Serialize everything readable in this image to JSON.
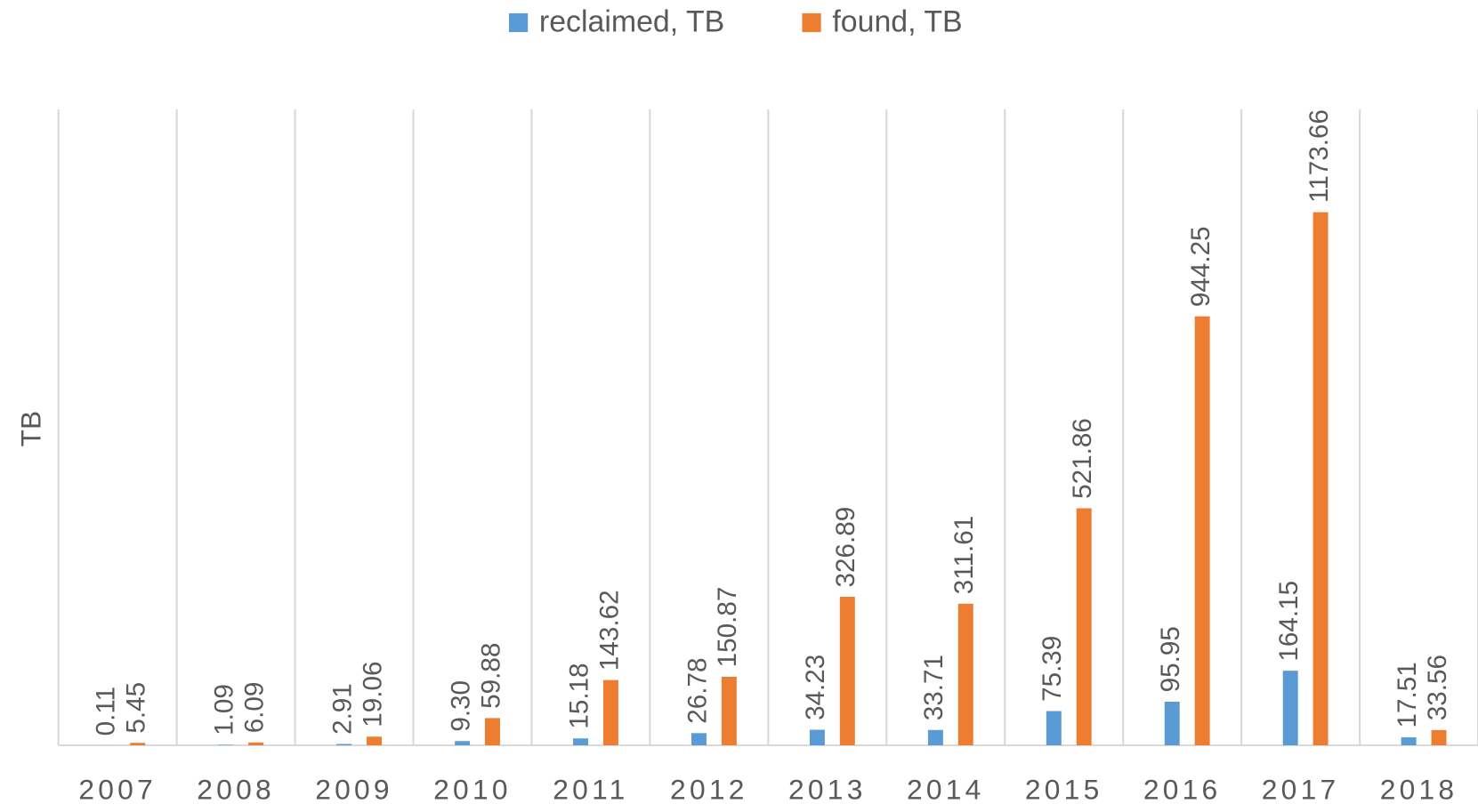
{
  "chart_data": {
    "type": "bar",
    "y_axis_label": "TB",
    "categories": [
      "2007",
      "2008",
      "2009",
      "2010",
      "2011",
      "2012",
      "2013",
      "2014",
      "2015",
      "2016",
      "2017",
      "2018"
    ],
    "series": [
      {
        "name": "reclaimed, TB",
        "color": "#5b9bd5",
        "values": [
          0.11,
          1.09,
          2.91,
          9.3,
          15.18,
          26.78,
          34.23,
          33.71,
          75.39,
          95.95,
          164.15,
          17.51
        ],
        "value_labels": [
          "0.11",
          "1.09",
          "2.91",
          "9.30",
          "15.18",
          "26.78",
          "34.23",
          "33.71",
          "75.39",
          "95.95",
          "164.15",
          "17.51"
        ]
      },
      {
        "name": "found, TB",
        "color": "#ed7d31",
        "values": [
          5.45,
          6.09,
          19.06,
          59.88,
          143.62,
          150.87,
          326.89,
          311.61,
          521.86,
          944.25,
          1173.66,
          33.56
        ],
        "value_labels": [
          "5.45",
          "6.09",
          "19.06",
          "59.88",
          "143.62",
          "150.87",
          "326.89",
          "311.61",
          "521.86",
          "944.25",
          "1173.66",
          "33.56"
        ]
      }
    ],
    "ylim": [
      0,
      1400
    ],
    "legend": "top"
  }
}
